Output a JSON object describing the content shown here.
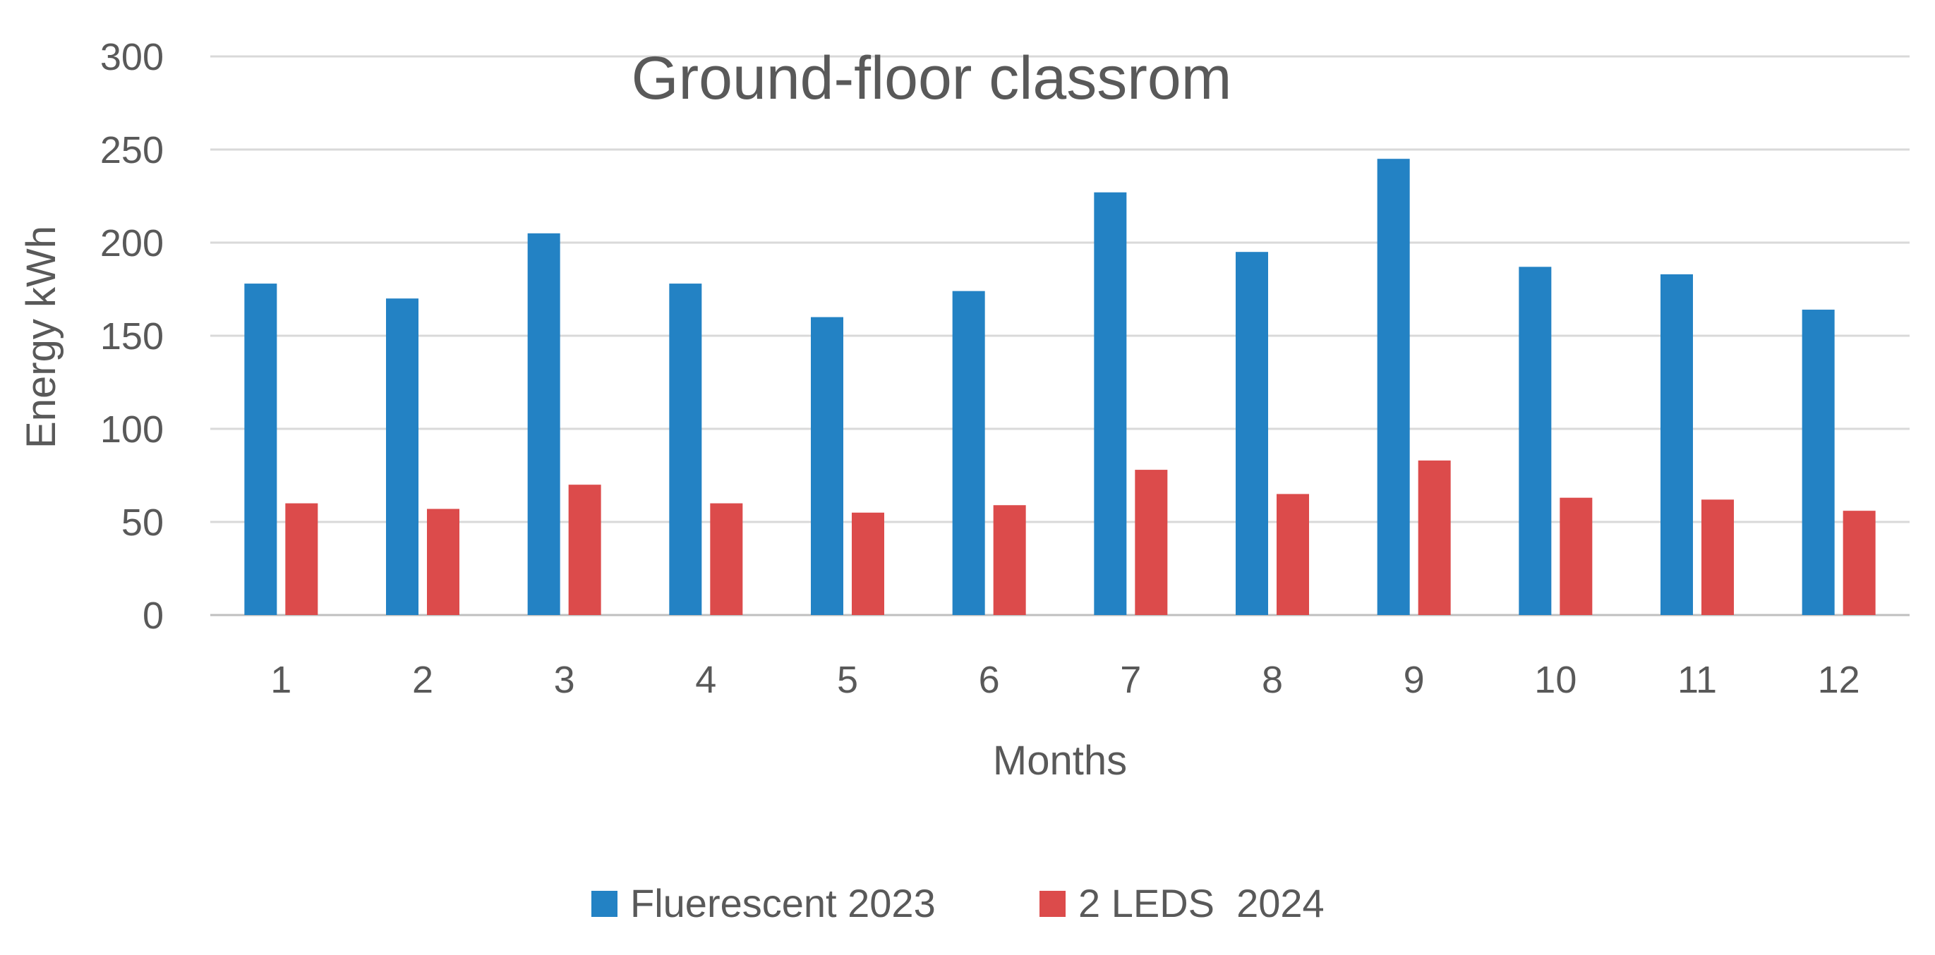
{
  "chart_data": {
    "type": "bar",
    "title": "Ground-floor classrom",
    "xlabel": "Months",
    "ylabel": "Energy kWh",
    "categories": [
      "1",
      "2",
      "3",
      "4",
      "5",
      "6",
      "7",
      "8",
      "9",
      "10",
      "11",
      "12"
    ],
    "series": [
      {
        "name": "Fluerescent 2023",
        "color": "#2382c4",
        "values": [
          178,
          170,
          205,
          178,
          160,
          174,
          227,
          195,
          245,
          187,
          183,
          164
        ]
      },
      {
        "name": "2 LEDS  2024",
        "color": "#dc4b4b",
        "values": [
          60,
          57,
          70,
          60,
          55,
          59,
          78,
          65,
          83,
          63,
          62,
          56
        ]
      }
    ],
    "ylim": [
      0,
      300
    ],
    "yticks": [
      "0",
      "50",
      "100",
      "150",
      "200",
      "250",
      "300"
    ],
    "grid": true,
    "legend_position": "bottom"
  }
}
